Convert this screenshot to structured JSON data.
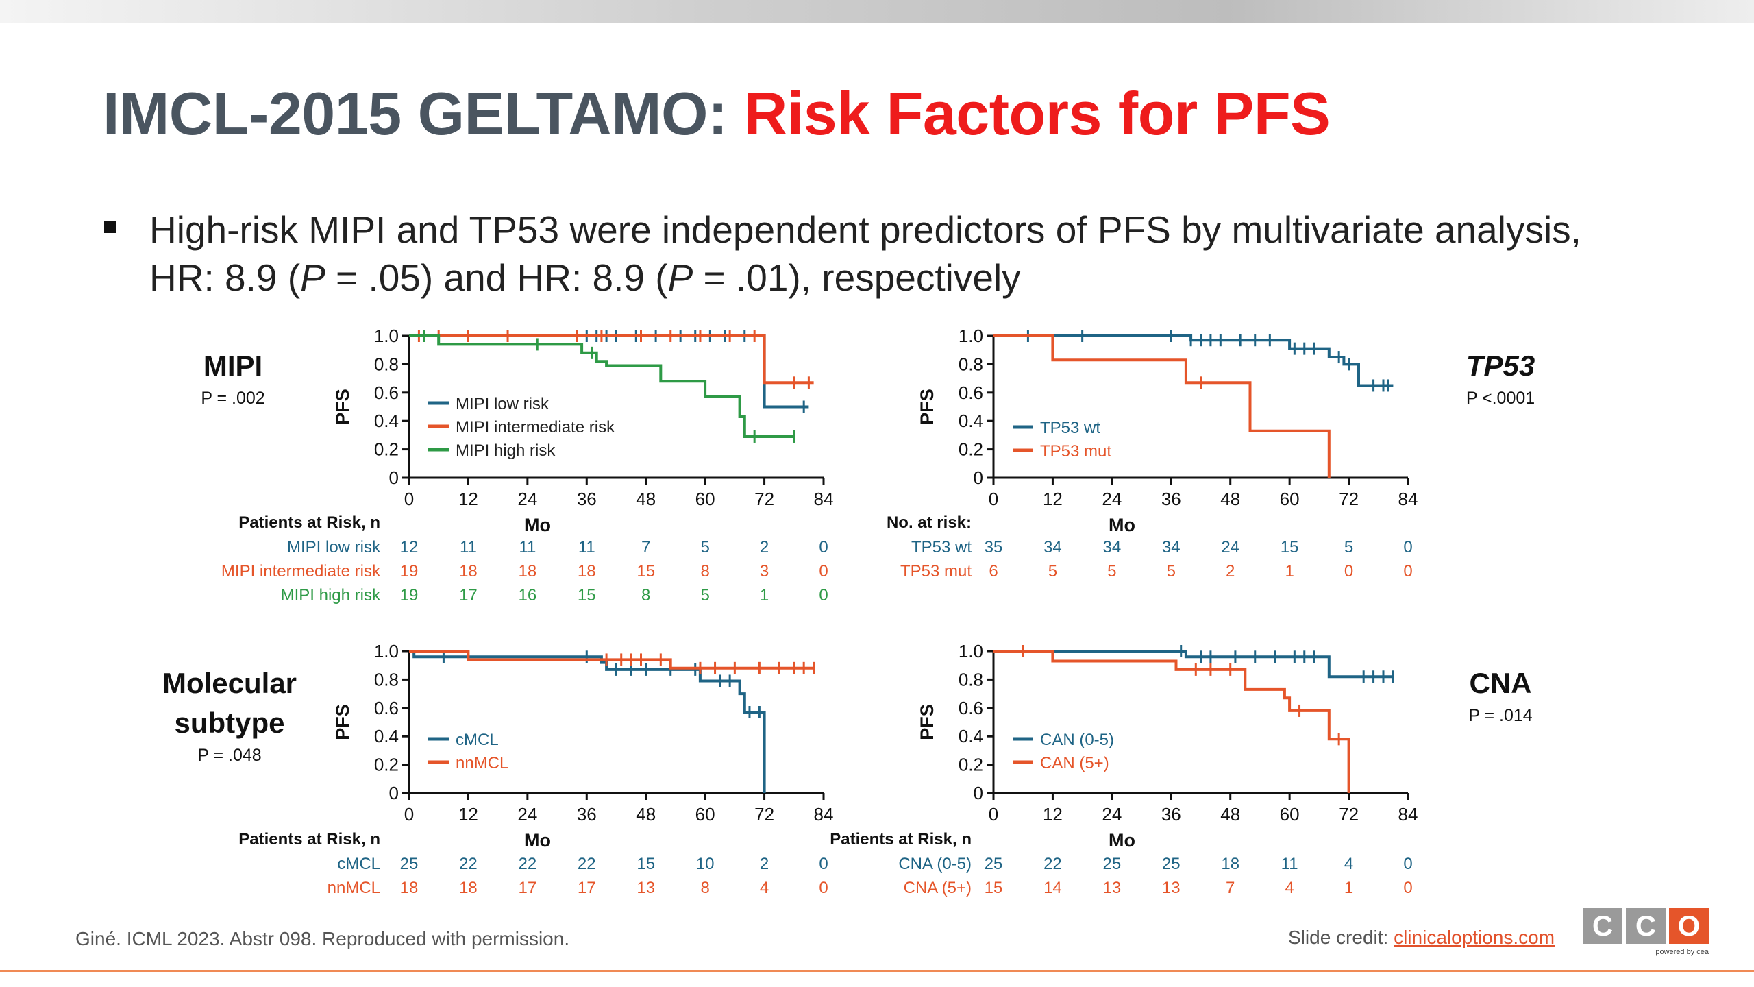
{
  "title": {
    "part1": "IMCL-2015 GELTAMO: ",
    "part2": "Risk Factors for PFS"
  },
  "bullet": {
    "t1": "High-risk MIPI and TP53 were independent predictors of PFS by multivariate analysis, HR: 8.9 (",
    "p1": "P",
    "t2": " = .05) and HR: 8.9 (",
    "p2": "P",
    "t3": " = .01), respectively"
  },
  "side_labels": {
    "mipi": {
      "title": "MIPI",
      "p": "P = .002"
    },
    "tp53": {
      "title": "TP53",
      "p": "P <.0001"
    },
    "molecular": {
      "title": "Molecular subtype",
      "p": "P = .048"
    },
    "cna": {
      "title": "CNA",
      "p": "P = .014"
    }
  },
  "colors": {
    "blue": "#1f6485",
    "orange": "#e5552a",
    "green": "#2e9a46",
    "title_gray": "#4a5560",
    "title_red": "#ee1c1c"
  },
  "chart_data": [
    {
      "id": "mipi",
      "type": "line",
      "ylabel": "PFS",
      "xlabel": "Mo",
      "xlim": [
        0,
        84
      ],
      "ylim": [
        0,
        1
      ],
      "x_ticks": [
        "0",
        "12",
        "24",
        "36",
        "48",
        "60",
        "72",
        "84"
      ],
      "y_ticks": [
        "0",
        "0.2",
        "0.4",
        "0.6",
        "0.8",
        "1.0"
      ],
      "legend_placement": "center",
      "series": [
        {
          "name": "MIPI low risk",
          "color": "#1f6485",
          "x": [
            0,
            72,
            72,
            81
          ],
          "y": [
            1.0,
            1.0,
            0.5,
            0.5
          ],
          "censor_x": [
            36,
            38,
            40,
            42,
            46,
            50,
            55,
            58,
            61,
            64,
            68,
            80
          ]
        },
        {
          "name": "MIPI intermediate risk",
          "color": "#e5552a",
          "x": [
            0,
            72,
            72,
            82
          ],
          "y": [
            1.0,
            1.0,
            0.67,
            0.67
          ],
          "censor_x": [
            2,
            6,
            12,
            20,
            34,
            39,
            47,
            53,
            59,
            65,
            70,
            78,
            81
          ]
        },
        {
          "name": "MIPI high risk",
          "color": "#2e9a46",
          "x": [
            0,
            6,
            6,
            12,
            12,
            35,
            35,
            38,
            38,
            40,
            40,
            51,
            51,
            60,
            60,
            67,
            67,
            68,
            68,
            78
          ],
          "y": [
            1.0,
            1.0,
            0.94,
            0.94,
            0.94,
            0.94,
            0.88,
            0.88,
            0.82,
            0.82,
            0.79,
            0.79,
            0.68,
            0.68,
            0.57,
            0.57,
            0.43,
            0.43,
            0.29,
            0.29
          ],
          "censor_x": [
            3,
            26,
            37,
            70,
            78
          ]
        }
      ],
      "risk_table": {
        "header": "Patients at Risk, n",
        "rows": [
          {
            "label": "MIPI low risk",
            "color": "#1f6485",
            "values": [
              "12",
              "11",
              "11",
              "11",
              "7",
              "5",
              "2",
              "0"
            ]
          },
          {
            "label": "MIPI intermediate risk",
            "color": "#e5552a",
            "values": [
              "19",
              "18",
              "18",
              "18",
              "15",
              "8",
              "3",
              "0"
            ]
          },
          {
            "label": "MIPI high risk",
            "color": "#2e9a46",
            "values": [
              "19",
              "17",
              "16",
              "15",
              "8",
              "5",
              "1",
              "0"
            ]
          }
        ]
      }
    },
    {
      "id": "tp53",
      "type": "line",
      "ylabel": "PFS",
      "xlabel": "Mo",
      "xlim": [
        0,
        84
      ],
      "ylim": [
        0,
        1
      ],
      "x_ticks": [
        "0",
        "12",
        "24",
        "36",
        "48",
        "60",
        "72",
        "84"
      ],
      "y_ticks": [
        "0",
        "0.2",
        "0.4",
        "0.6",
        "0.8",
        "1.0"
      ],
      "legend_placement": "bottom-left",
      "series": [
        {
          "name": "TP53 wt",
          "color": "#1f6485",
          "x": [
            0,
            40,
            40,
            60,
            60,
            68,
            68,
            71,
            71,
            74,
            74,
            81
          ],
          "y": [
            1.0,
            1.0,
            0.97,
            0.97,
            0.91,
            0.91,
            0.85,
            0.85,
            0.8,
            0.8,
            0.65,
            0.65
          ],
          "censor_x": [
            7,
            18,
            36,
            40,
            42,
            44,
            46,
            50,
            53,
            56,
            61,
            63,
            65,
            70,
            72,
            77,
            79,
            80
          ]
        },
        {
          "name": "TP53 mut",
          "color": "#e5552a",
          "x": [
            0,
            12,
            12,
            39,
            39,
            52,
            52,
            68,
            68
          ],
          "y": [
            1.0,
            1.0,
            0.83,
            0.83,
            0.67,
            0.67,
            0.33,
            0.33,
            0.0
          ],
          "censor_x": [
            42
          ]
        }
      ],
      "risk_table": {
        "header": "No. at risk:",
        "rows": [
          {
            "label": "TP53 wt",
            "color": "#1f6485",
            "values": [
              "35",
              "34",
              "34",
              "34",
              "24",
              "15",
              "5",
              "0"
            ]
          },
          {
            "label": "TP53 mut",
            "color": "#e5552a",
            "values": [
              "6",
              "5",
              "5",
              "5",
              "2",
              "1",
              "0",
              "0"
            ]
          }
        ]
      }
    },
    {
      "id": "molecular",
      "type": "line",
      "ylabel": "PFS",
      "xlabel": "Mo",
      "xlim": [
        0,
        84
      ],
      "ylim": [
        0,
        1
      ],
      "x_ticks": [
        "0",
        "12",
        "24",
        "36",
        "48",
        "60",
        "72",
        "84"
      ],
      "y_ticks": [
        "0",
        "0.2",
        "0.4",
        "0.6",
        "0.8",
        "1.0"
      ],
      "legend_placement": "bottom-left",
      "series": [
        {
          "name": "cMCL",
          "color": "#1f6485",
          "x": [
            0,
            1,
            1,
            39,
            39,
            40,
            40,
            59,
            59,
            67,
            67,
            68,
            68,
            72,
            72
          ],
          "y": [
            1.0,
            1.0,
            0.96,
            0.96,
            0.92,
            0.92,
            0.87,
            0.87,
            0.79,
            0.79,
            0.7,
            0.7,
            0.57,
            0.57,
            0.0
          ],
          "censor_x": [
            7,
            36,
            42,
            45,
            48,
            53,
            58,
            63,
            65,
            69,
            71
          ]
        },
        {
          "name": "nnMCL",
          "color": "#e5552a",
          "x": [
            0,
            12,
            12,
            49,
            49,
            53,
            53,
            82
          ],
          "y": [
            1.0,
            1.0,
            0.94,
            0.94,
            0.94,
            0.94,
            0.88,
            0.88
          ],
          "censor_x": [
            40,
            43,
            45,
            47,
            51,
            59,
            62,
            66,
            71,
            75,
            78,
            80,
            82
          ]
        }
      ],
      "risk_table": {
        "header": "Patients at Risk, n",
        "rows": [
          {
            "label": "cMCL",
            "color": "#1f6485",
            "values": [
              "25",
              "22",
              "22",
              "22",
              "15",
              "10",
              "2",
              "0"
            ]
          },
          {
            "label": "nnMCL",
            "color": "#e5552a",
            "values": [
              "18",
              "18",
              "17",
              "17",
              "13",
              "8",
              "4",
              "0"
            ]
          }
        ]
      }
    },
    {
      "id": "cna",
      "type": "line",
      "ylabel": "PFS",
      "xlabel": "Mo",
      "xlim": [
        0,
        84
      ],
      "ylim": [
        0,
        1
      ],
      "x_ticks": [
        "0",
        "12",
        "24",
        "36",
        "48",
        "60",
        "72",
        "84"
      ],
      "y_ticks": [
        "0",
        "0.2",
        "0.4",
        "0.6",
        "0.8",
        "1.0"
      ],
      "legend_placement": "bottom-left",
      "series": [
        {
          "name": "CAN (0-5)",
          "color": "#1f6485",
          "x": [
            0,
            39,
            39,
            68,
            68,
            81
          ],
          "y": [
            1.0,
            1.0,
            0.96,
            0.96,
            0.82,
            0.82
          ],
          "censor_x": [
            38,
            42,
            44,
            49,
            53,
            57,
            61,
            63,
            65,
            75,
            77,
            79,
            81
          ]
        },
        {
          "name": "CAN (5+)",
          "color": "#e5552a",
          "x": [
            0,
            12,
            12,
            37,
            37,
            39,
            39,
            51,
            51,
            55,
            55,
            59,
            59,
            60,
            60,
            68,
            68,
            72,
            72
          ],
          "y": [
            1.0,
            1.0,
            0.93,
            0.93,
            0.87,
            0.87,
            0.87,
            0.87,
            0.73,
            0.73,
            0.73,
            0.73,
            0.67,
            0.67,
            0.58,
            0.58,
            0.38,
            0.38,
            0.0
          ],
          "censor_x": [
            6,
            41,
            44,
            48,
            62,
            70
          ]
        }
      ],
      "risk_table": {
        "header": "Patients at Risk, n",
        "rows": [
          {
            "label": "CNA (0-5)",
            "color": "#1f6485",
            "values": [
              "25",
              "22",
              "25",
              "25",
              "18",
              "11",
              "4",
              "0"
            ]
          },
          {
            "label": "CNA (5+)",
            "color": "#e5552a",
            "values": [
              "15",
              "14",
              "13",
              "13",
              "7",
              "4",
              "1",
              "0"
            ]
          }
        ]
      }
    }
  ],
  "footer": {
    "citation": "Giné. ICML 2023. Abstr 098. Reproduced with permission.",
    "credit_label": "Slide credit: ",
    "credit_link": "clinicaloptions.com",
    "logo_letters": [
      "C",
      "C",
      "O"
    ],
    "logo_colors": [
      "#9a9a9a",
      "#9a9a9a",
      "#e5552a"
    ],
    "powered": "powered by cea"
  }
}
